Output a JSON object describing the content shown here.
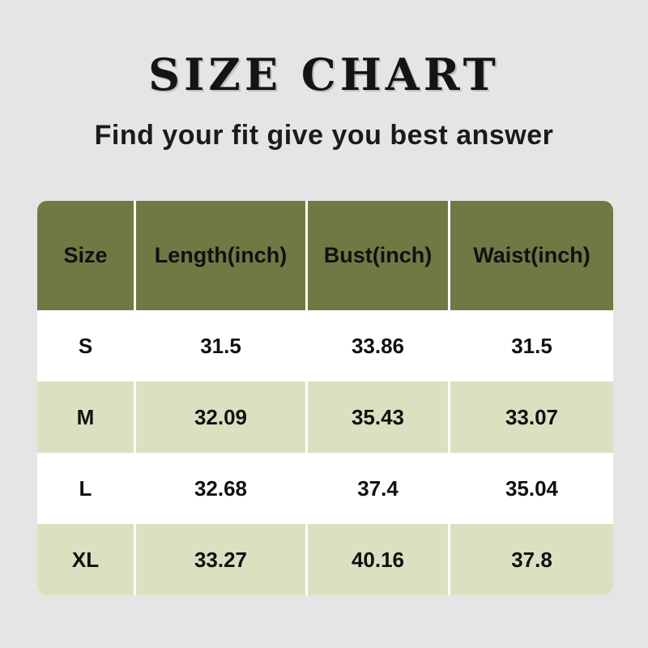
{
  "page": {
    "title": "SIZE CHART",
    "subtitle": "Find your fit give you best answer"
  },
  "chart_data": {
    "type": "table",
    "title": "SIZE CHART",
    "subtitle": "Find your fit give you best answer",
    "columns": [
      "Size",
      "Length(inch)",
      "Bust(inch)",
      "Waist(inch)"
    ],
    "rows": [
      [
        "S",
        "31.5",
        "33.86",
        "31.5"
      ],
      [
        "M",
        "32.09",
        "35.43",
        "33.07"
      ],
      [
        "L",
        "32.68",
        "37.4",
        "35.04"
      ],
      [
        "XL",
        "33.27",
        "40.16",
        "37.8"
      ]
    ]
  },
  "colors": {
    "page_background": "#e5e5e5",
    "header_background": "#6f7944",
    "row_alt_background": "#dae1c0",
    "row_background": "#ffffff",
    "text": "#111111"
  }
}
